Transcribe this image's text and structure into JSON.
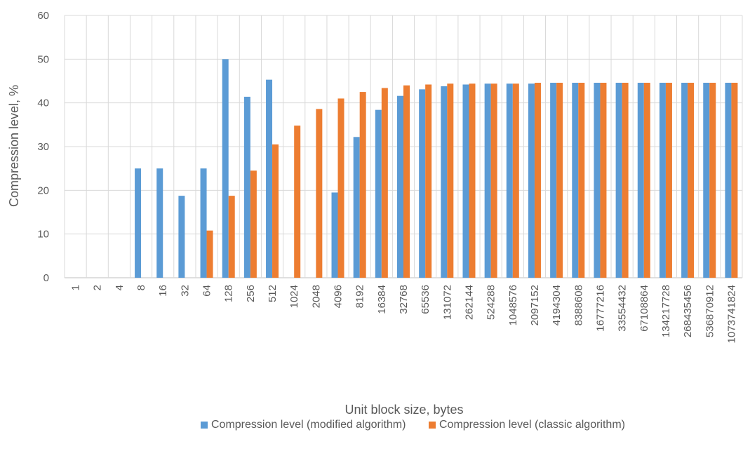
{
  "chart_data": {
    "type": "bar",
    "title": "",
    "xlabel": "Unit block size, bytes",
    "ylabel": "Compression level, %",
    "ylim": [
      0,
      60
    ],
    "yticks": [
      0,
      10,
      20,
      30,
      40,
      50,
      60
    ],
    "grid": true,
    "legend_position": "bottom",
    "categories": [
      "1",
      "2",
      "4",
      "8",
      "16",
      "32",
      "64",
      "128",
      "256",
      "512",
      "1024",
      "2048",
      "4096",
      "8192",
      "16384",
      "32768",
      "65536",
      "131072",
      "262144",
      "524288",
      "1048576",
      "2097152",
      "4194304",
      "8388608",
      "16777216",
      "33554432",
      "67108864",
      "134217728",
      "268435456",
      "536870912",
      "1073741824"
    ],
    "series": [
      {
        "name": "Compression level (modified algorithm)",
        "color": "#5B9BD5",
        "values": [
          0,
          0,
          0,
          25,
          25,
          18.75,
          25,
          50,
          41.4,
          45.3,
          0,
          0,
          19.5,
          32.2,
          38.4,
          41.6,
          43.1,
          43.8,
          44.2,
          44.4,
          44.4,
          44.4,
          44.6,
          44.6,
          44.6,
          44.6,
          44.6,
          44.6,
          44.6,
          44.6,
          44.6
        ]
      },
      {
        "name": "Compression level (classic algorithm)",
        "color": "#ED7D31",
        "values": [
          0,
          0,
          0,
          0,
          0,
          0,
          10.8,
          18.75,
          24.5,
          30.5,
          34.8,
          38.6,
          41,
          42.5,
          43.4,
          44,
          44.2,
          44.4,
          44.4,
          44.4,
          44.4,
          44.6,
          44.6,
          44.6,
          44.6,
          44.6,
          44.6,
          44.6,
          44.6,
          44.6,
          44.6
        ]
      }
    ]
  }
}
